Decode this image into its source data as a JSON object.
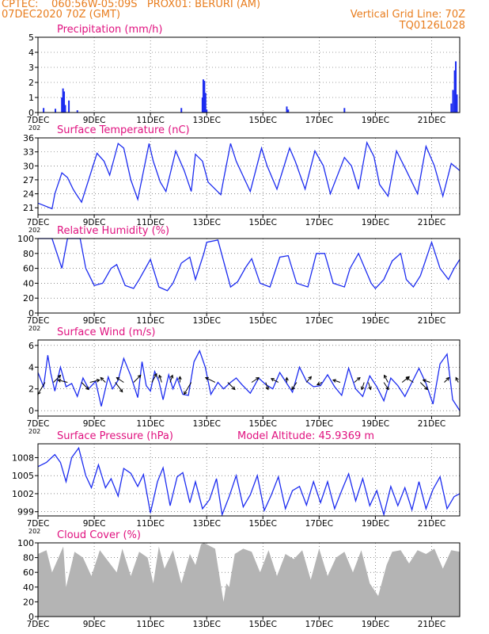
{
  "header": {
    "left_line1": "CPTEC:    060:56W-05:09S   PROX01: BERURI (AM)",
    "left_line2": "07DEC2020 70Z (GMT)",
    "right_line1": "Vertical Grid Line: 70Z",
    "right_line2": "TQ0126L028"
  },
  "colors": {
    "header": "#e87d1e",
    "title": "#e0117f",
    "series": "#1c2cf0",
    "cloud": "#b4b4b4",
    "wind_arrow": "#000000",
    "grid": "#444444"
  },
  "x_axis": {
    "tick_labels": [
      "7DEC",
      "9DEC",
      "11DEC",
      "13DEC",
      "15DEC",
      "17DEC",
      "19DEC",
      "21DEC"
    ],
    "days": [
      0,
      2,
      4,
      6,
      8,
      10,
      12,
      14
    ],
    "range_days": [
      0,
      15
    ],
    "year_stub": "202"
  },
  "chart_data": [
    {
      "id": "precip",
      "type": "bar",
      "title": "Precipitation (mm/h)",
      "ylim": [
        0,
        5
      ],
      "yticks": [
        0,
        1,
        2,
        3,
        4,
        5
      ],
      "grid": true,
      "bars": [
        {
          "day": 0.2,
          "value": 0.3
        },
        {
          "day": 0.62,
          "value": 0.25
        },
        {
          "day": 0.85,
          "value": 1.0
        },
        {
          "day": 0.89,
          "value": 1.6
        },
        {
          "day": 0.93,
          "value": 1.4
        },
        {
          "day": 0.97,
          "value": 0.5
        },
        {
          "day": 1.1,
          "value": 0.8
        },
        {
          "day": 1.4,
          "value": 0.15
        },
        {
          "day": 5.1,
          "value": 0.3
        },
        {
          "day": 5.85,
          "value": 1.0
        },
        {
          "day": 5.88,
          "value": 2.2
        },
        {
          "day": 5.92,
          "value": 2.1
        },
        {
          "day": 5.96,
          "value": 1.3
        },
        {
          "day": 6.0,
          "value": 0.2
        },
        {
          "day": 8.85,
          "value": 0.4
        },
        {
          "day": 8.9,
          "value": 0.2
        },
        {
          "day": 10.9,
          "value": 0.3
        },
        {
          "day": 14.7,
          "value": 0.6
        },
        {
          "day": 14.76,
          "value": 1.5
        },
        {
          "day": 14.82,
          "value": 2.8
        },
        {
          "day": 14.86,
          "value": 3.4
        },
        {
          "day": 14.9,
          "value": 1.2
        }
      ]
    },
    {
      "id": "temp",
      "type": "line",
      "title": "Surface Temperature (nC)",
      "ylim": [
        19.5,
        36
      ],
      "yticks": [
        21,
        24,
        27,
        30,
        33,
        36
      ],
      "grid": true,
      "x": [
        0,
        0.5,
        0.6,
        0.85,
        1.05,
        1.25,
        1.35,
        1.55,
        1.8,
        2.1,
        2.35,
        2.55,
        2.85,
        3.05,
        3.3,
        3.55,
        3.95,
        4.1,
        4.35,
        4.55,
        4.9,
        5.2,
        5.45,
        5.6,
        5.85,
        6.05,
        6.5,
        6.6,
        6.85,
        7.05,
        7.55,
        7.95,
        8.15,
        8.5,
        8.95,
        9.15,
        9.5,
        9.85,
        10.15,
        10.4,
        10.9,
        11.15,
        11.4,
        11.7,
        11.95,
        12.15,
        12.45,
        12.75,
        13.1,
        13.5,
        13.8,
        14.1,
        14.4,
        14.7,
        15.0
      ],
      "y": [
        22,
        20.8,
        24,
        28.5,
        27.5,
        25,
        24,
        22.2,
        27,
        32.7,
        31,
        28,
        34.8,
        33.8,
        27,
        22.8,
        34.8,
        31,
        26.5,
        24.5,
        33.2,
        29,
        24.5,
        32.5,
        31,
        26.5,
        23.8,
        27,
        34.8,
        31,
        24.5,
        33.8,
        30,
        25,
        33.8,
        31,
        25,
        33.2,
        30,
        24,
        31.8,
        30,
        25,
        35,
        32,
        26,
        23.5,
        33.2,
        29,
        24,
        34.2,
        30,
        23.5,
        30.5,
        29
      ]
    },
    {
      "id": "rh",
      "type": "line",
      "title": "Relative Humidity (%)",
      "ylim": [
        0,
        100
      ],
      "yticks": [
        0,
        20,
        40,
        60,
        80,
        100
      ],
      "grid": true,
      "x": [
        0,
        0.5,
        0.85,
        1.05,
        1.2,
        1.5,
        1.7,
        2.0,
        2.3,
        2.6,
        2.8,
        3.1,
        3.4,
        3.6,
        4.0,
        4.3,
        4.6,
        4.8,
        5.1,
        5.4,
        5.6,
        5.9,
        6.0,
        6.4,
        6.85,
        7.1,
        7.4,
        7.6,
        7.9,
        8.25,
        8.6,
        8.9,
        9.2,
        9.6,
        9.9,
        10.2,
        10.5,
        10.9,
        11.1,
        11.4,
        11.85,
        12.0,
        12.3,
        12.6,
        12.9,
        13.1,
        13.35,
        13.6,
        14.0,
        14.3,
        14.6,
        14.8,
        15.0
      ],
      "y": [
        100,
        100,
        60,
        100,
        100,
        100,
        60,
        37,
        40,
        60,
        65,
        37,
        33,
        45,
        72,
        35,
        30,
        40,
        67,
        75,
        45,
        80,
        95,
        98,
        35,
        42,
        62,
        73,
        40,
        35,
        75,
        77,
        40,
        35,
        80,
        80,
        40,
        35,
        60,
        80,
        40,
        33,
        45,
        70,
        80,
        45,
        35,
        50,
        95,
        60,
        45,
        60,
        72
      ]
    },
    {
      "id": "wind",
      "type": "line",
      "title": "Surface Wind (m/s)",
      "ylim": [
        -0.5,
        6.5
      ],
      "yticks": [
        0,
        2,
        4,
        6
      ],
      "grid": true,
      "x": [
        0,
        0.2,
        0.35,
        0.45,
        0.6,
        0.8,
        1.0,
        1.2,
        1.4,
        1.6,
        1.8,
        2.05,
        2.25,
        2.5,
        2.65,
        2.85,
        3.05,
        3.3,
        3.55,
        3.7,
        3.85,
        4.0,
        4.15,
        4.3,
        4.45,
        4.65,
        4.8,
        4.95,
        5.15,
        5.35,
        5.55,
        5.75,
        5.95,
        6.15,
        6.4,
        6.6,
        6.85,
        7.05,
        7.25,
        7.55,
        7.85,
        8.1,
        8.35,
        8.6,
        8.85,
        9.05,
        9.3,
        9.55,
        9.8,
        10.05,
        10.3,
        10.55,
        10.8,
        11.05,
        11.3,
        11.55,
        11.8,
        12.05,
        12.3,
        12.55,
        12.8,
        13.05,
        13.3,
        13.55,
        13.8,
        14.05,
        14.3,
        14.55,
        14.75,
        15.0
      ],
      "y": [
        3.5,
        2.2,
        5.1,
        3.5,
        1.8,
        4.0,
        2.2,
        2.5,
        1.3,
        3.0,
        2.0,
        2.7,
        0.4,
        3.1,
        2.0,
        2.8,
        4.8,
        3.2,
        1.2,
        4.5,
        2.3,
        1.8,
        3.6,
        2.7,
        1.0,
        3.3,
        2.0,
        3.0,
        1.5,
        1.4,
        4.5,
        5.5,
        4.0,
        1.5,
        2.6,
        2.0,
        2.6,
        3.0,
        2.4,
        1.6,
        3.0,
        2.4,
        2.0,
        3.5,
        2.5,
        1.7,
        4.0,
        2.7,
        2.2,
        2.3,
        3.3,
        2.2,
        1.4,
        3.9,
        2.0,
        1.3,
        3.2,
        2.2,
        0.9,
        3.0,
        2.3,
        1.3,
        2.6,
        3.9,
        2.5,
        0.6,
        4.3,
        5.2,
        1.0,
        0.0
      ],
      "arrows": [
        {
          "day": 0.25,
          "u": -1.5,
          "v": -2.5
        },
        {
          "day": 0.55,
          "u": 1.5,
          "v": 1.5
        },
        {
          "day": 1.05,
          "u": -2.0,
          "v": 0.5
        },
        {
          "day": 1.55,
          "u": 1.5,
          "v": -1.5
        },
        {
          "day": 1.85,
          "u": 2.0,
          "v": 0.5
        },
        {
          "day": 2.4,
          "u": -1.0,
          "v": 1.0
        },
        {
          "day": 2.75,
          "u": 1.5,
          "v": -2.0
        },
        {
          "day": 3.05,
          "u": -1.5,
          "v": 1.0
        },
        {
          "day": 3.4,
          "u": 1.5,
          "v": 1.5
        },
        {
          "day": 4.05,
          "u": 1.0,
          "v": 1.8
        },
        {
          "day": 4.4,
          "u": -0.5,
          "v": 1.5
        },
        {
          "day": 4.7,
          "u": 0.5,
          "v": 1.5
        },
        {
          "day": 5.05,
          "u": 0.0,
          "v": 1.2
        },
        {
          "day": 5.45,
          "u": -1.5,
          "v": -2.5
        },
        {
          "day": 6.3,
          "u": -2.0,
          "v": 1.0
        },
        {
          "day": 6.75,
          "u": 1.5,
          "v": -1.5
        },
        {
          "day": 7.6,
          "u": 1.5,
          "v": 1.0
        },
        {
          "day": 8.1,
          "u": 0.5,
          "v": -1.5
        },
        {
          "day": 8.55,
          "u": -1.5,
          "v": 0.8
        },
        {
          "day": 8.85,
          "u": 0.0,
          "v": 1.0
        },
        {
          "day": 9.2,
          "u": -1.0,
          "v": -1.5
        },
        {
          "day": 9.55,
          "u": 1.0,
          "v": 1.2
        },
        {
          "day": 10.1,
          "u": -1.0,
          "v": -0.5
        },
        {
          "day": 10.75,
          "u": -1.5,
          "v": 0.5
        },
        {
          "day": 11.25,
          "u": 1.2,
          "v": 1.0
        },
        {
          "day": 11.6,
          "u": -0.5,
          "v": -1.5
        },
        {
          "day": 11.75,
          "u": 0.5,
          "v": -1.5
        },
        {
          "day": 12.3,
          "u": 1.0,
          "v": -1.5
        },
        {
          "day": 12.45,
          "u": -0.8,
          "v": 1.5
        },
        {
          "day": 12.95,
          "u": 1.5,
          "v": 1.2
        },
        {
          "day": 13.35,
          "u": -1.5,
          "v": 1.0
        },
        {
          "day": 13.6,
          "u": 1.5,
          "v": -1.5
        },
        {
          "day": 13.95,
          "u": -1.5,
          "v": 0.5
        },
        {
          "day": 14.45,
          "u": 1.0,
          "v": 1.0
        },
        {
          "day": 14.95,
          "u": -0.5,
          "v": 1.0
        }
      ]
    },
    {
      "id": "pres",
      "type": "line",
      "title": "Surface Pressure (hPa)",
      "annotation": "Model Altitude: 45.9369 m",
      "ylim": [
        998.3,
        1010.3
      ],
      "yticks": [
        999,
        1002,
        1005,
        1008
      ],
      "grid": true,
      "x": [
        0,
        0.3,
        0.6,
        0.8,
        1.0,
        1.2,
        1.45,
        1.7,
        1.9,
        2.15,
        2.4,
        2.6,
        2.85,
        3.05,
        3.3,
        3.55,
        3.75,
        4.0,
        4.25,
        4.45,
        4.7,
        4.95,
        5.15,
        5.4,
        5.6,
        5.85,
        6.1,
        6.35,
        6.55,
        6.8,
        7.05,
        7.3,
        7.55,
        7.8,
        8.05,
        8.3,
        8.55,
        8.8,
        9.05,
        9.3,
        9.55,
        9.8,
        10.05,
        10.3,
        10.55,
        10.8,
        11.05,
        11.3,
        11.55,
        11.8,
        12.05,
        12.3,
        12.55,
        12.8,
        13.05,
        13.3,
        13.55,
        13.8,
        14.05,
        14.3,
        14.55,
        14.8,
        15.0
      ],
      "y": [
        1006.5,
        1007.2,
        1008.5,
        1007.2,
        1004,
        1008,
        1009.6,
        1005,
        1003,
        1006.8,
        1003,
        1004.5,
        1001.6,
        1006.2,
        1005.4,
        1003.2,
        1005.2,
        998.8,
        1004,
        1006.3,
        1000,
        1004.8,
        1005.5,
        1000.5,
        1004,
        999.5,
        1001,
        1004.5,
        998.5,
        1001.5,
        1005,
        999.8,
        1001.8,
        1005,
        999.2,
        1001.8,
        1004.8,
        999.5,
        1002.5,
        1003.2,
        1000.1,
        1004,
        1000.5,
        1004,
        999.5,
        1002.5,
        1005.3,
        1000.8,
        1004.5,
        1000,
        1002.5,
        998.5,
        1003.2,
        1000,
        1003,
        999.3,
        1004,
        999.5,
        1002.7,
        1004.8,
        999.5,
        1001.5,
        1002
      ]
    },
    {
      "id": "cloud",
      "type": "area",
      "title": "Cloud Cover (%)",
      "ylim": [
        0,
        100
      ],
      "yticks": [
        0,
        20,
        40,
        60,
        80,
        100
      ],
      "grid": true,
      "x": [
        0,
        0.3,
        0.5,
        0.9,
        1.0,
        1.3,
        1.6,
        1.9,
        2.2,
        2.5,
        2.8,
        3.0,
        3.3,
        3.6,
        3.9,
        4.1,
        4.3,
        4.5,
        4.8,
        5.1,
        5.4,
        5.6,
        5.8,
        5.9,
        6.3,
        6.6,
        6.7,
        6.8,
        7.0,
        7.3,
        7.6,
        7.9,
        8.2,
        8.5,
        8.8,
        9.1,
        9.4,
        9.7,
        10.0,
        10.3,
        10.6,
        10.9,
        11.2,
        11.5,
        11.8,
        12.1,
        12.4,
        12.6,
        12.9,
        13.2,
        13.5,
        13.8,
        14.1,
        14.4,
        14.7,
        15.0
      ],
      "y": [
        85,
        90,
        60,
        95,
        40,
        88,
        80,
        55,
        90,
        75,
        60,
        92,
        55,
        88,
        80,
        45,
        95,
        65,
        90,
        45,
        85,
        70,
        98,
        100,
        92,
        20,
        45,
        40,
        85,
        92,
        88,
        60,
        90,
        55,
        85,
        78,
        90,
        50,
        92,
        55,
        80,
        88,
        60,
        90,
        45,
        28,
        70,
        88,
        90,
        72,
        90,
        85,
        92,
        65,
        90,
        88
      ]
    }
  ]
}
